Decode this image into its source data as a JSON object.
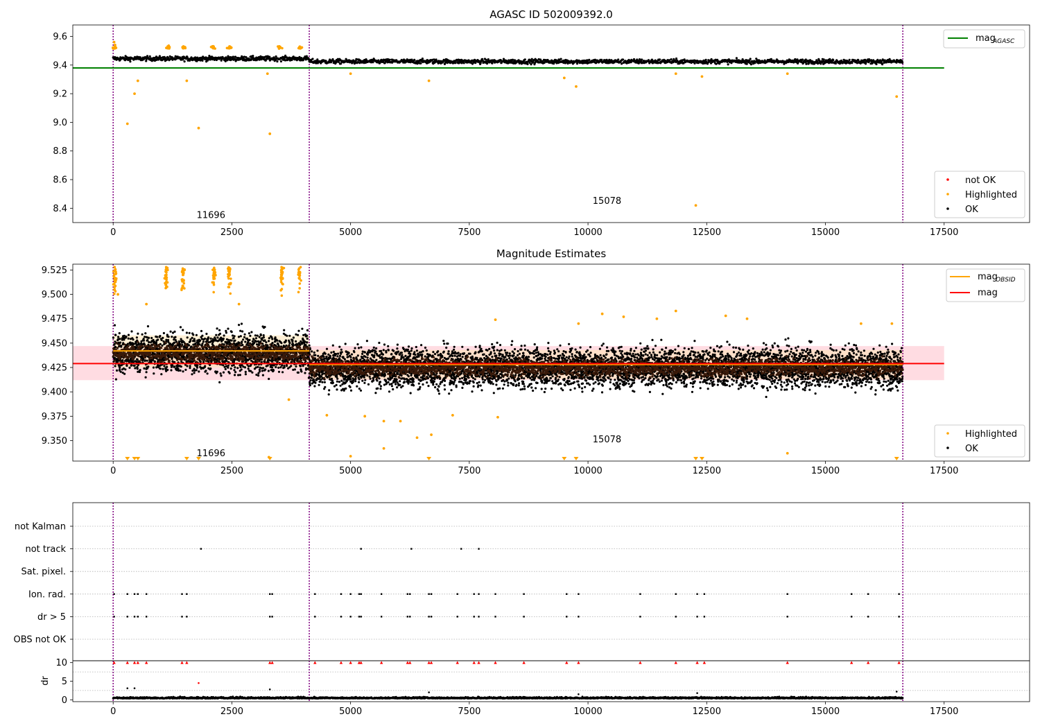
{
  "figure": {
    "title_top": "AGASC ID 502009392.0",
    "title_mid": "Magnitude Estimates"
  },
  "colors": {
    "ok": "#000000",
    "highlighted": "#ffa500",
    "not_ok": "#ff0000",
    "mag_agasc": "#008000",
    "mag_obsid": "#ffa500",
    "mag": "#ff0000",
    "obsid_boundary": "#800080",
    "band_mag": "#ffc0cb",
    "band_obsid": "#ffe4b5"
  },
  "chart_data": [
    {
      "id": "agasc",
      "type": "scatter",
      "title": "AGASC ID 502009392.0",
      "xlim": [
        -850,
        19300
      ],
      "ylim": [
        8.3,
        9.68
      ],
      "xticks": [
        0,
        2500,
        5000,
        7500,
        10000,
        12500,
        15000,
        17500
      ],
      "yticks": [
        8.4,
        8.6,
        8.8,
        9.0,
        9.2,
        9.4,
        9.6
      ],
      "ytick_labels": [
        "8.4",
        "8.6",
        "8.8",
        "9.0",
        "9.2",
        "9.4",
        "9.6"
      ],
      "obsid_boundaries": [
        0,
        4130,
        16630
      ],
      "obsid_labels": [
        {
          "text": "11696",
          "x": 2060,
          "y": 8.35
        },
        {
          "text": "15078",
          "x": 10400,
          "y": 8.45
        }
      ],
      "lines": [
        {
          "name": "mag",
          "sub": "AGASC",
          "color": "#008000",
          "x": [
            -850,
            17500
          ],
          "y": [
            9.38,
            9.38
          ]
        }
      ],
      "ok_segments": [
        {
          "x_start": 0,
          "x_end": 4130,
          "y_center": 9.445,
          "y_spread": 0.025
        },
        {
          "x_start": 4130,
          "x_end": 16630,
          "y_center": 9.425,
          "y_spread": 0.025
        }
      ],
      "highlighted_points": [
        [
          20,
          9.56
        ],
        [
          40,
          9.54
        ],
        [
          60,
          9.52
        ],
        [
          300,
          8.99
        ],
        [
          450,
          9.2
        ],
        [
          520,
          9.29
        ],
        [
          1550,
          9.29
        ],
        [
          1800,
          8.96
        ],
        [
          3300,
          8.92
        ],
        [
          1150,
          9.53
        ],
        [
          1480,
          9.53
        ],
        [
          2100,
          9.53
        ],
        [
          2450,
          9.53
        ],
        [
          3500,
          9.53
        ],
        [
          3930,
          9.52
        ],
        [
          5000,
          9.34
        ],
        [
          6650,
          9.29
        ],
        [
          9500,
          9.31
        ],
        [
          9750,
          9.25
        ],
        [
          12270,
          8.42
        ],
        [
          12400,
          9.32
        ],
        [
          14200,
          9.34
        ],
        [
          16500,
          9.18
        ],
        [
          11850,
          9.34
        ],
        [
          3250,
          9.34
        ]
      ],
      "legend_lines": [
        "mag"
      ],
      "legend_points": [
        "not OK",
        "Highlighted",
        "OK"
      ]
    },
    {
      "id": "estimates",
      "type": "scatter",
      "title": "Magnitude Estimates",
      "xlim": [
        -850,
        19300
      ],
      "ylim": [
        9.329,
        9.531
      ],
      "xticks": [
        0,
        2500,
        5000,
        7500,
        10000,
        12500,
        15000,
        17500
      ],
      "yticks": [
        9.35,
        9.375,
        9.4,
        9.425,
        9.45,
        9.475,
        9.5,
        9.525
      ],
      "ytick_labels": [
        "9.350",
        "9.375",
        "9.400",
        "9.425",
        "9.450",
        "9.475",
        "9.500",
        "9.525"
      ],
      "obsid_boundaries": [
        0,
        4130,
        16630
      ],
      "obsid_labels": [
        {
          "text": "11696",
          "x": 2060,
          "y": 9.337
        },
        {
          "text": "15078",
          "x": 10400,
          "y": 9.351
        }
      ],
      "bands": [
        {
          "name": "mag",
          "x": [
            -850,
            17500
          ],
          "y": [
            9.412,
            9.447
          ],
          "color": "#ffc0cb"
        },
        {
          "name": "mag_obsid_1",
          "x": [
            0,
            4130
          ],
          "y": [
            9.425,
            9.458
          ],
          "color": "#ffe4b5"
        },
        {
          "name": "mag_obsid_2",
          "x": [
            4130,
            16630
          ],
          "y": [
            9.413,
            9.443
          ],
          "color": "#ffe4b5"
        }
      ],
      "lines": [
        {
          "name": "mag",
          "sub": "OBSID",
          "color": "#ffa500",
          "segments": [
            [
              0,
              4130,
              9.442
            ],
            [
              4130,
              16630,
              9.428
            ]
          ]
        },
        {
          "name": "mag",
          "sub": "",
          "color": "#ff0000",
          "segments": [
            [
              -850,
              17500,
              9.429
            ]
          ]
        }
      ],
      "ok_segments": [
        {
          "x_start": 0,
          "x_end": 4130,
          "y_center": 9.44,
          "y_spread": 0.032
        },
        {
          "x_start": 4130,
          "x_end": 16630,
          "y_center": 9.425,
          "y_spread": 0.032
        }
      ],
      "highlighted_points": [
        [
          30,
          9.528
        ],
        [
          60,
          9.515
        ],
        [
          100,
          9.5
        ],
        [
          1120,
          9.52
        ],
        [
          1470,
          9.52
        ],
        [
          2120,
          9.52
        ],
        [
          2450,
          9.52
        ],
        [
          3550,
          9.52
        ],
        [
          3920,
          9.52
        ],
        [
          2650,
          9.49
        ],
        [
          700,
          9.49
        ],
        [
          3700,
          9.392
        ],
        [
          4500,
          9.376
        ],
        [
          5300,
          9.375
        ],
        [
          5700,
          9.37
        ],
        [
          6050,
          9.37
        ],
        [
          6400,
          9.353
        ],
        [
          6700,
          9.356
        ],
        [
          7150,
          9.376
        ],
        [
          8050,
          9.474
        ],
        [
          9800,
          9.47
        ],
        [
          10300,
          9.48
        ],
        [
          10750,
          9.477
        ],
        [
          11450,
          9.475
        ],
        [
          11850,
          9.483
        ],
        [
          12900,
          9.478
        ],
        [
          13350,
          9.475
        ],
        [
          14200,
          9.337
        ],
        [
          15750,
          9.47
        ],
        [
          16400,
          9.47
        ],
        [
          5000,
          9.334
        ],
        [
          5700,
          9.342
        ],
        [
          8100,
          9.374
        ],
        [
          3280,
          9.333
        ]
      ],
      "off_scale_markers_x": [
        300,
        450,
        520,
        1550,
        1800,
        3300,
        6650,
        9500,
        9750,
        12270,
        12400,
        16500
      ],
      "legend_lines": [
        "mag_OBSID",
        "mag"
      ],
      "legend_points": [
        "Highlighted",
        "OK"
      ]
    },
    {
      "id": "flags",
      "type": "scatter",
      "xlim": [
        -850,
        19300
      ],
      "categories": [
        "not Kalman",
        "not track",
        "Sat. pixel.",
        "Ion. rad.",
        "dr > 5",
        "OBS not OK"
      ],
      "obsid_boundaries": [
        0,
        4130,
        16630
      ],
      "flag_points": {
        "not track": [
          1850,
          5220,
          6280,
          7330,
          7700
        ],
        "Ion. rad.": [
          20,
          300,
          450,
          520,
          700,
          1450,
          1550,
          3300,
          3350,
          4250,
          4800,
          5000,
          5180,
          5220,
          5650,
          6200,
          6250,
          6650,
          6700,
          7250,
          7600,
          7700,
          8050,
          8650,
          9550,
          9800,
          11100,
          11850,
          12300,
          12450,
          14200,
          15550,
          15900,
          16550
        ],
        "dr > 5": [
          20,
          300,
          450,
          520,
          700,
          1450,
          1550,
          3300,
          3350,
          4250,
          4800,
          5000,
          5180,
          5220,
          5650,
          6200,
          6250,
          6650,
          6700,
          7250,
          7600,
          7700,
          8050,
          8650,
          9550,
          9800,
          11100,
          11850,
          12300,
          12450,
          14200,
          15550,
          15900,
          16550
        ]
      }
    },
    {
      "id": "dr",
      "type": "scatter",
      "xlim": [
        -850,
        19300
      ],
      "ylim": [
        -0.5,
        10.5
      ],
      "yticks": [
        0,
        5,
        10
      ],
      "ytick_labels": [
        "0",
        "5",
        "10"
      ],
      "xticks": [
        0,
        2500,
        5000,
        7500,
        10000,
        12500,
        15000,
        17500
      ],
      "ylabel": "dr",
      "obsid_boundaries": [
        0,
        4130,
        16630
      ],
      "clipped_x": [
        20,
        300,
        450,
        520,
        700,
        1450,
        1550,
        3300,
        3350,
        4250,
        4800,
        5000,
        5180,
        5220,
        5650,
        6200,
        6250,
        6650,
        6700,
        7250,
        7600,
        7700,
        8050,
        8650,
        9550,
        9800,
        11100,
        11850,
        12300,
        12450,
        14200,
        15550,
        15900,
        16550
      ],
      "dr_points": [
        [
          300,
          3.1
        ],
        [
          450,
          3.1
        ],
        [
          1800,
          4.5
        ],
        [
          3300,
          2.8
        ],
        [
          6650,
          2
        ],
        [
          9800,
          1.5
        ],
        [
          12300,
          1.8
        ],
        [
          16500,
          2.2
        ]
      ]
    }
  ],
  "ticks_x_labels": [
    "0",
    "2500",
    "5000",
    "7500",
    "10000",
    "12500",
    "15000",
    "17500"
  ]
}
